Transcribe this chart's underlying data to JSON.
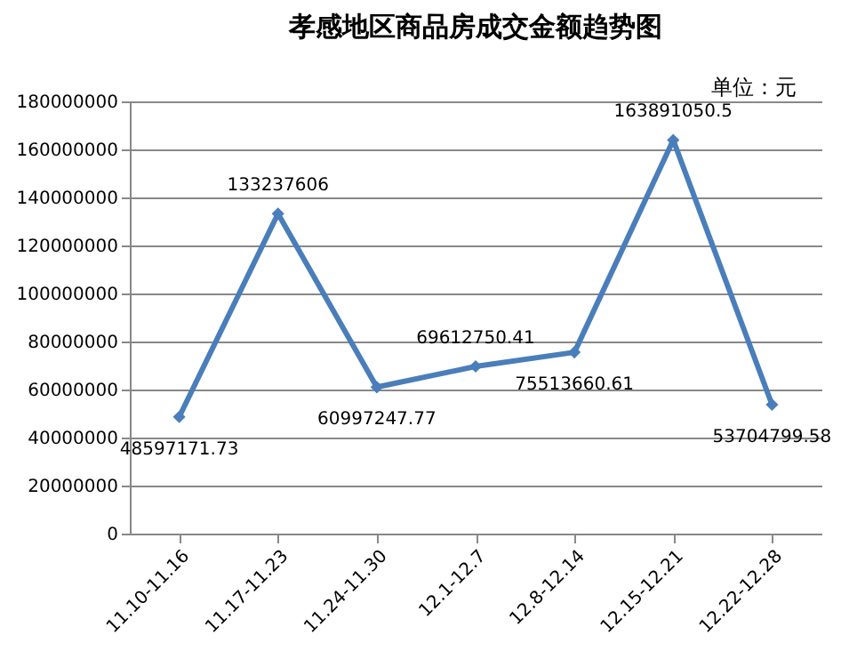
{
  "chart_data": {
    "type": "line",
    "title": "孝感地区商品房成交金额趋势图",
    "annotations": [
      "单位：元"
    ],
    "categories": [
      "11.10-11.16",
      "11.17-11.23",
      "11.24-11.30",
      "12.1-12.7",
      "12.8-12.14",
      "12.15-12.21",
      "12.22-12.28"
    ],
    "series": [
      {
        "color": "#4a7ebb",
        "values": [
          48597171.73,
          133237606,
          60997247.77,
          69612750.41,
          75513660.61,
          163891050.5,
          53704799.58
        ]
      }
    ],
    "ylim": [
      0,
      180000000
    ],
    "yticks": [
      0,
      20000000,
      40000000,
      60000000,
      80000000,
      100000000,
      120000000,
      140000000,
      160000000,
      180000000
    ],
    "grid": "y",
    "marker": "diamond",
    "line_style": "solid",
    "data_labels": true
  }
}
